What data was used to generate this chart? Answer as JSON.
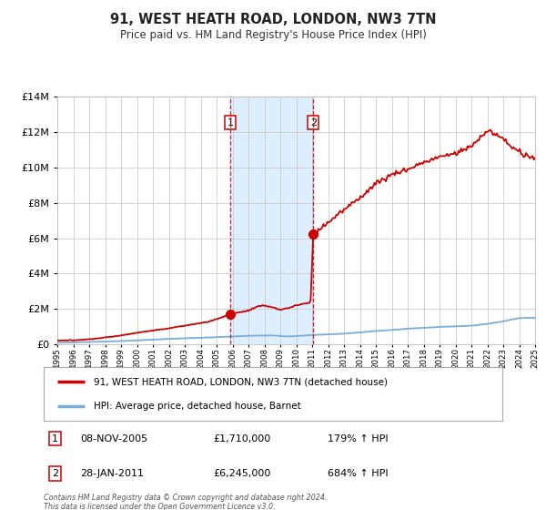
{
  "title": "91, WEST HEATH ROAD, LONDON, NW3 7TN",
  "subtitle": "Price paid vs. HM Land Registry's House Price Index (HPI)",
  "legend_line1": "91, WEST HEATH ROAD, LONDON, NW3 7TN (detached house)",
  "legend_line2": "HPI: Average price, detached house, Barnet",
  "sale1_date": "08-NOV-2005",
  "sale1_price": "£1,710,000",
  "sale1_hpi": "179% ↑ HPI",
  "sale1_year": 2005.86,
  "sale1_value": 1710000,
  "sale2_date": "28-JAN-2011",
  "sale2_price": "£6,245,000",
  "sale2_hpi": "684% ↑ HPI",
  "sale2_year": 2011.07,
  "sale2_value": 6245000,
  "shade_start": 2005.86,
  "shade_end": 2011.07,
  "footer": "Contains HM Land Registry data © Crown copyright and database right 2024.\nThis data is licensed under the Open Government Licence v3.0.",
  "line_color_red": "#cc0000",
  "line_color_blue": "#7aaed6",
  "shade_color": "#ddeeff",
  "grid_color": "#cccccc",
  "background_color": "#ffffff",
  "ylim": [
    0,
    14000000
  ],
  "xlim_start": 1995,
  "xlim_end": 2025
}
